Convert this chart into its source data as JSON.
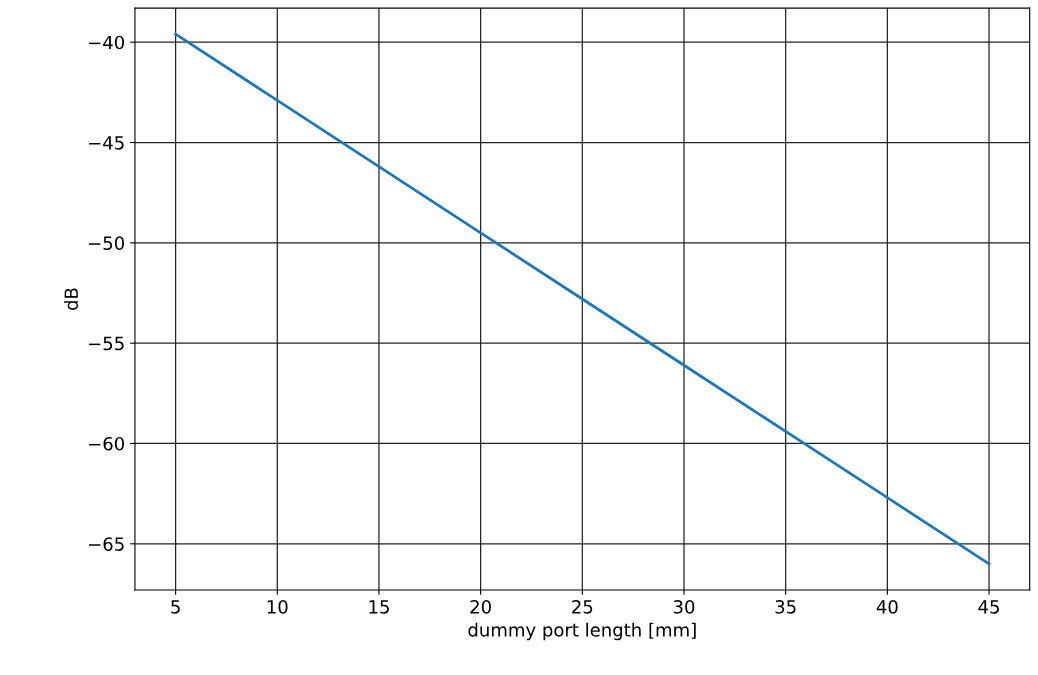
{
  "chart_data": {
    "type": "line",
    "xlabel": "dummy port length [mm]",
    "ylabel": "dB",
    "x": [
      5,
      10,
      15,
      20,
      25,
      30,
      35,
      40,
      45
    ],
    "series": [
      {
        "color": "#1f77b4",
        "values": [
          -39.6,
          -42.9,
          -46.2,
          -49.5,
          -52.8,
          -56.1,
          -59.4,
          -62.7,
          -66.0
        ]
      }
    ],
    "xlim": [
      3,
      47
    ],
    "xticks": [
      5,
      10,
      15,
      20,
      25,
      30,
      35,
      40,
      45
    ],
    "ylim": [
      -67.3,
      -38.3
    ],
    "yticks": [
      -65,
      -60,
      -55,
      -50,
      -45,
      -40
    ],
    "grid": true,
    "marker": "none",
    "line_style": "solid"
  }
}
